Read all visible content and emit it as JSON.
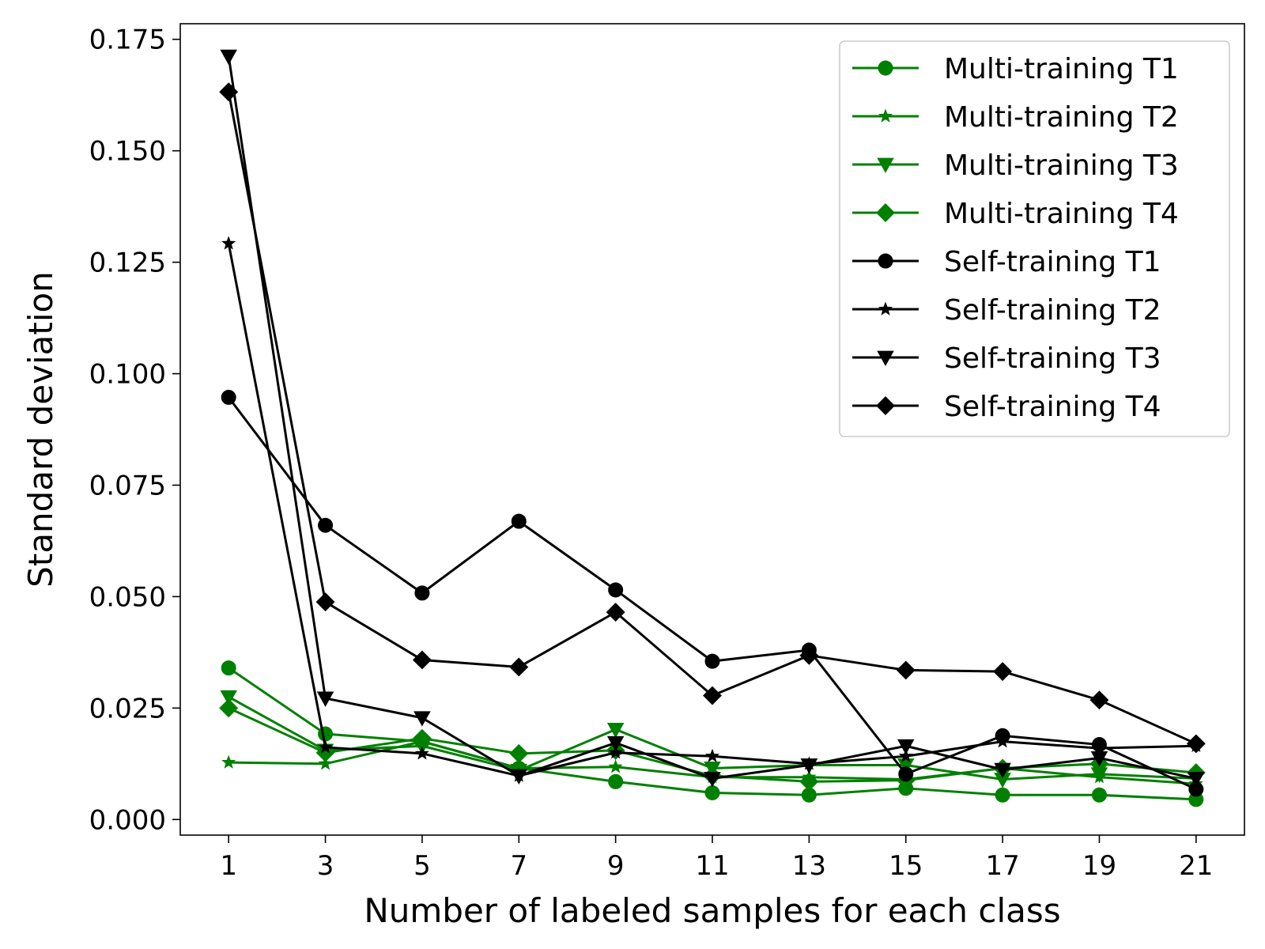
{
  "chart_data": {
    "type": "line",
    "xlabel": "Number of labeled samples for each class",
    "ylabel": "Standard deviation",
    "x": [
      1,
      3,
      5,
      7,
      9,
      11,
      13,
      15,
      17,
      19,
      21
    ],
    "xticks": [
      "1",
      "3",
      "5",
      "7",
      "9",
      "11",
      "13",
      "15",
      "17",
      "19",
      "21"
    ],
    "yticks": [
      0.0,
      0.025,
      0.05,
      0.075,
      0.1,
      0.125,
      0.15,
      0.175
    ],
    "ytick_labels": [
      "0.000",
      "0.025",
      "0.050",
      "0.075",
      "0.100",
      "0.125",
      "0.150",
      "0.175"
    ],
    "xlim": [
      0,
      22
    ],
    "ylim": [
      -0.0035,
      0.1785
    ],
    "grid": false,
    "legend_position": "top-right",
    "series": [
      {
        "name": "Multi-training T1",
        "color": "#008000",
        "marker": "circle",
        "values": [
          0.034,
          0.0192,
          0.0175,
          0.0115,
          0.0085,
          0.006,
          0.0055,
          0.007,
          0.0055,
          0.0055,
          0.0045
        ]
      },
      {
        "name": "Multi-training T2",
        "color": "#008000",
        "marker": "star",
        "values": [
          0.0128,
          0.0125,
          0.0175,
          0.0115,
          0.0118,
          0.0095,
          0.0095,
          0.009,
          0.0115,
          0.0095,
          0.008
        ]
      },
      {
        "name": "Multi-training T3",
        "color": "#008000",
        "marker": "triangle-down",
        "values": [
          0.0275,
          0.0155,
          0.0165,
          0.011,
          0.0202,
          0.0115,
          0.0122,
          0.0122,
          0.009,
          0.0102,
          0.0092
        ]
      },
      {
        "name": "Multi-training T4",
        "color": "#008000",
        "marker": "diamond",
        "values": [
          0.025,
          0.015,
          0.0182,
          0.0148,
          0.0155,
          0.0098,
          0.0085,
          0.0088,
          0.0115,
          0.0125,
          0.0105
        ]
      },
      {
        "name": "Self-training T1",
        "color": "#000000",
        "marker": "circle",
        "values": [
          0.0947,
          0.066,
          0.0508,
          0.0669,
          0.0515,
          0.0355,
          0.038,
          0.0102,
          0.0188,
          0.0168,
          0.0068
        ]
      },
      {
        "name": "Self-training T2",
        "color": "#000000",
        "marker": "star",
        "values": [
          0.1292,
          0.0162,
          0.0148,
          0.0098,
          0.015,
          0.0142,
          0.0125,
          0.0142,
          0.0175,
          0.016,
          0.0165
        ]
      },
      {
        "name": "Self-training T3",
        "color": "#000000",
        "marker": "triangle-down",
        "values": [
          0.1712,
          0.0272,
          0.0228,
          0.0098,
          0.0172,
          0.0092,
          0.0122,
          0.0165,
          0.0112,
          0.0138,
          0.0092
        ]
      },
      {
        "name": "Self-training T4",
        "color": "#000000",
        "marker": "diamond",
        "values": [
          0.1632,
          0.0488,
          0.0358,
          0.0342,
          0.0465,
          0.0278,
          0.0368,
          0.0335,
          0.0332,
          0.0268,
          0.017
        ]
      }
    ]
  }
}
